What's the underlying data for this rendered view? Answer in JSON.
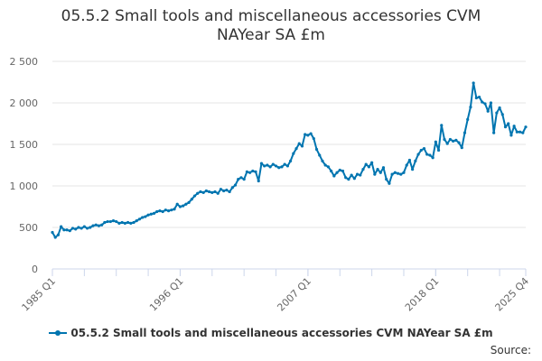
{
  "source_label": "Source:",
  "colors": {
    "series": "#0075b0",
    "grid": "#e6e6e6",
    "axis": "#ccd6eb",
    "text": "#666666"
  },
  "chart_data": {
    "type": "line",
    "title": "05.5.2 Small tools and miscellaneous accessories CVM NAYear SA £m",
    "xlabel": "",
    "ylabel": "",
    "ylim": [
      0,
      2500
    ],
    "yticks": [
      0,
      500,
      1000,
      1500,
      2000,
      2500
    ],
    "ytick_labels": [
      "0",
      "500",
      "1 000",
      "1 500",
      "2 000",
      "2 500"
    ],
    "xticks": [
      {
        "x": 1985.0,
        "label": "1985 Q1"
      },
      {
        "x": 1996.0,
        "label": "1996 Q1"
      },
      {
        "x": 2007.0,
        "label": "2007 Q1"
      },
      {
        "x": 2018.0,
        "label": "2018 Q1"
      },
      {
        "x": 2025.75,
        "label": "2025 Q4"
      }
    ],
    "xlim": [
      1985.0,
      2025.75
    ],
    "grid": true,
    "legend_position": "bottom",
    "series": [
      {
        "name": "05.5.2 Small tools and miscellaneous accessories CVM NAYear SA £m",
        "points": [
          [
            1985.0,
            440
          ],
          [
            1985.25,
            380
          ],
          [
            1985.5,
            410
          ],
          [
            1985.75,
            510
          ],
          [
            1986.0,
            470
          ],
          [
            1986.25,
            470
          ],
          [
            1986.5,
            460
          ],
          [
            1986.75,
            490
          ],
          [
            1987.0,
            480
          ],
          [
            1987.25,
            500
          ],
          [
            1987.5,
            490
          ],
          [
            1987.75,
            510
          ],
          [
            1988.0,
            490
          ],
          [
            1988.25,
            500
          ],
          [
            1988.5,
            520
          ],
          [
            1988.75,
            530
          ],
          [
            1989.0,
            520
          ],
          [
            1989.25,
            530
          ],
          [
            1989.5,
            560
          ],
          [
            1989.75,
            570
          ],
          [
            1990.0,
            570
          ],
          [
            1990.25,
            580
          ],
          [
            1990.5,
            570
          ],
          [
            1990.75,
            550
          ],
          [
            1991.0,
            560
          ],
          [
            1991.25,
            550
          ],
          [
            1991.5,
            560
          ],
          [
            1991.75,
            550
          ],
          [
            1992.0,
            560
          ],
          [
            1992.25,
            580
          ],
          [
            1992.5,
            600
          ],
          [
            1992.75,
            620
          ],
          [
            1993.0,
            630
          ],
          [
            1993.25,
            650
          ],
          [
            1993.5,
            660
          ],
          [
            1993.75,
            670
          ],
          [
            1994.0,
            690
          ],
          [
            1994.25,
            700
          ],
          [
            1994.5,
            690
          ],
          [
            1994.75,
            710
          ],
          [
            1995.0,
            700
          ],
          [
            1995.25,
            710
          ],
          [
            1995.5,
            720
          ],
          [
            1995.75,
            780
          ],
          [
            1996.0,
            750
          ],
          [
            1996.25,
            760
          ],
          [
            1996.5,
            780
          ],
          [
            1996.75,
            800
          ],
          [
            1997.0,
            840
          ],
          [
            1997.25,
            880
          ],
          [
            1997.5,
            910
          ],
          [
            1997.75,
            930
          ],
          [
            1998.0,
            920
          ],
          [
            1998.25,
            940
          ],
          [
            1998.5,
            930
          ],
          [
            1998.75,
            920
          ],
          [
            1999.0,
            930
          ],
          [
            1999.25,
            910
          ],
          [
            1999.5,
            960
          ],
          [
            1999.75,
            940
          ],
          [
            2000.0,
            950
          ],
          [
            2000.25,
            930
          ],
          [
            2000.5,
            980
          ],
          [
            2000.75,
            1010
          ],
          [
            2001.0,
            1080
          ],
          [
            2001.25,
            1100
          ],
          [
            2001.5,
            1080
          ],
          [
            2001.75,
            1170
          ],
          [
            2002.0,
            1160
          ],
          [
            2002.25,
            1180
          ],
          [
            2002.5,
            1170
          ],
          [
            2002.75,
            1060
          ],
          [
            2003.0,
            1270
          ],
          [
            2003.25,
            1240
          ],
          [
            2003.5,
            1250
          ],
          [
            2003.75,
            1230
          ],
          [
            2004.0,
            1260
          ],
          [
            2004.25,
            1240
          ],
          [
            2004.5,
            1220
          ],
          [
            2004.75,
            1230
          ],
          [
            2005.0,
            1260
          ],
          [
            2005.25,
            1240
          ],
          [
            2005.5,
            1300
          ],
          [
            2005.75,
            1390
          ],
          [
            2006.0,
            1450
          ],
          [
            2006.25,
            1510
          ],
          [
            2006.5,
            1480
          ],
          [
            2006.75,
            1620
          ],
          [
            2007.0,
            1610
          ],
          [
            2007.25,
            1630
          ],
          [
            2007.5,
            1570
          ],
          [
            2007.75,
            1440
          ],
          [
            2008.0,
            1370
          ],
          [
            2008.25,
            1300
          ],
          [
            2008.5,
            1250
          ],
          [
            2008.75,
            1230
          ],
          [
            2009.0,
            1180
          ],
          [
            2009.25,
            1120
          ],
          [
            2009.5,
            1160
          ],
          [
            2009.75,
            1190
          ],
          [
            2010.0,
            1180
          ],
          [
            2010.25,
            1100
          ],
          [
            2010.5,
            1080
          ],
          [
            2010.75,
            1130
          ],
          [
            2011.0,
            1090
          ],
          [
            2011.25,
            1140
          ],
          [
            2011.5,
            1130
          ],
          [
            2011.75,
            1200
          ],
          [
            2012.0,
            1260
          ],
          [
            2012.25,
            1230
          ],
          [
            2012.5,
            1280
          ],
          [
            2012.75,
            1140
          ],
          [
            2013.0,
            1200
          ],
          [
            2013.25,
            1160
          ],
          [
            2013.5,
            1220
          ],
          [
            2013.75,
            1080
          ],
          [
            2014.0,
            1030
          ],
          [
            2014.25,
            1140
          ],
          [
            2014.5,
            1160
          ],
          [
            2014.75,
            1150
          ],
          [
            2015.0,
            1140
          ],
          [
            2015.25,
            1160
          ],
          [
            2015.5,
            1250
          ],
          [
            2015.75,
            1310
          ],
          [
            2016.0,
            1200
          ],
          [
            2016.25,
            1300
          ],
          [
            2016.5,
            1380
          ],
          [
            2016.75,
            1430
          ],
          [
            2017.0,
            1450
          ],
          [
            2017.25,
            1380
          ],
          [
            2017.5,
            1370
          ],
          [
            2017.75,
            1340
          ],
          [
            2018.0,
            1530
          ],
          [
            2018.25,
            1430
          ],
          [
            2018.5,
            1730
          ],
          [
            2018.75,
            1560
          ],
          [
            2019.0,
            1510
          ],
          [
            2019.25,
            1560
          ],
          [
            2019.5,
            1540
          ],
          [
            2019.75,
            1550
          ],
          [
            2020.0,
            1520
          ],
          [
            2020.25,
            1460
          ],
          [
            2020.5,
            1640
          ],
          [
            2020.75,
            1800
          ],
          [
            2021.0,
            1950
          ],
          [
            2021.25,
            2240
          ],
          [
            2021.5,
            2060
          ],
          [
            2021.75,
            2070
          ],
          [
            2022.0,
            2010
          ],
          [
            2022.25,
            1990
          ],
          [
            2022.5,
            1900
          ],
          [
            2022.75,
            2000
          ],
          [
            2023.0,
            1640
          ],
          [
            2023.25,
            1880
          ],
          [
            2023.5,
            1940
          ],
          [
            2023.75,
            1860
          ],
          [
            2024.0,
            1710
          ],
          [
            2024.25,
            1750
          ],
          [
            2024.5,
            1610
          ],
          [
            2024.75,
            1720
          ],
          [
            2025.0,
            1650
          ],
          [
            2025.25,
            1650
          ],
          [
            2025.5,
            1640
          ],
          [
            2025.75,
            1710
          ]
        ]
      }
    ]
  }
}
